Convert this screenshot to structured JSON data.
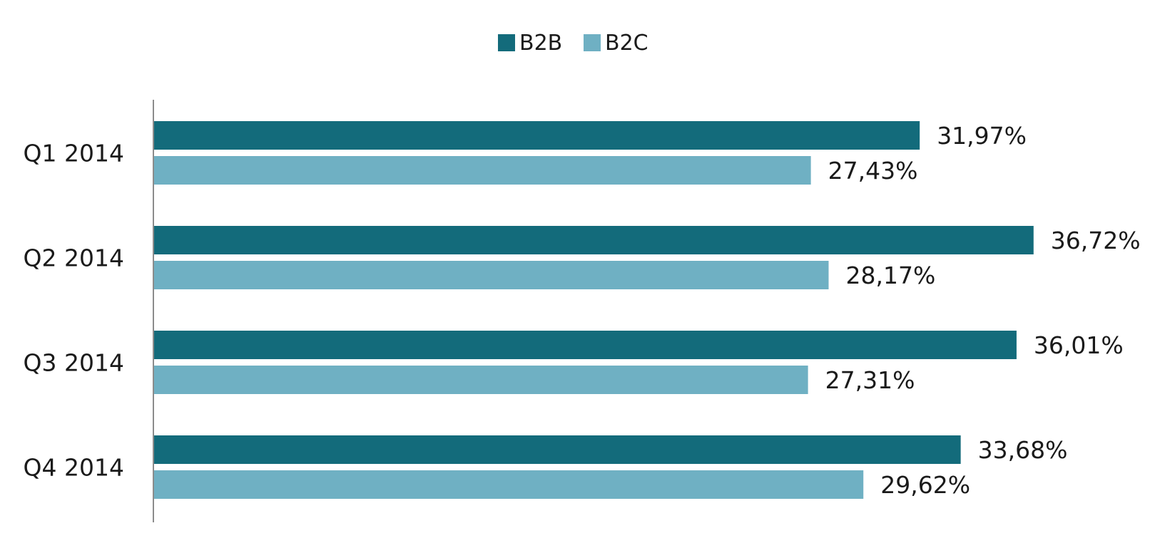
{
  "chart_data": {
    "type": "bar",
    "orientation": "horizontal",
    "categories": [
      "Q1 2014",
      "Q2 2014",
      "Q3 2014",
      "Q4 2014"
    ],
    "series": [
      {
        "name": "B2B",
        "values": [
          31.97,
          36.72,
          36.01,
          33.68
        ],
        "labels": [
          "31,97%",
          "36,72%",
          "36,01%",
          "33,68%"
        ],
        "color": "#136b7b"
      },
      {
        "name": "B2C",
        "values": [
          27.43,
          28.17,
          27.31,
          29.62
        ],
        "labels": [
          "27,43%",
          "28,17%",
          "27,31%",
          "29,62%"
        ],
        "color": "#6fb0c3"
      }
    ],
    "title": "",
    "xlabel": "",
    "ylabel": "",
    "xlim": [
      0,
      37
    ],
    "grid": false,
    "legend": "top-center",
    "axis_color": "#8c8c8c"
  }
}
